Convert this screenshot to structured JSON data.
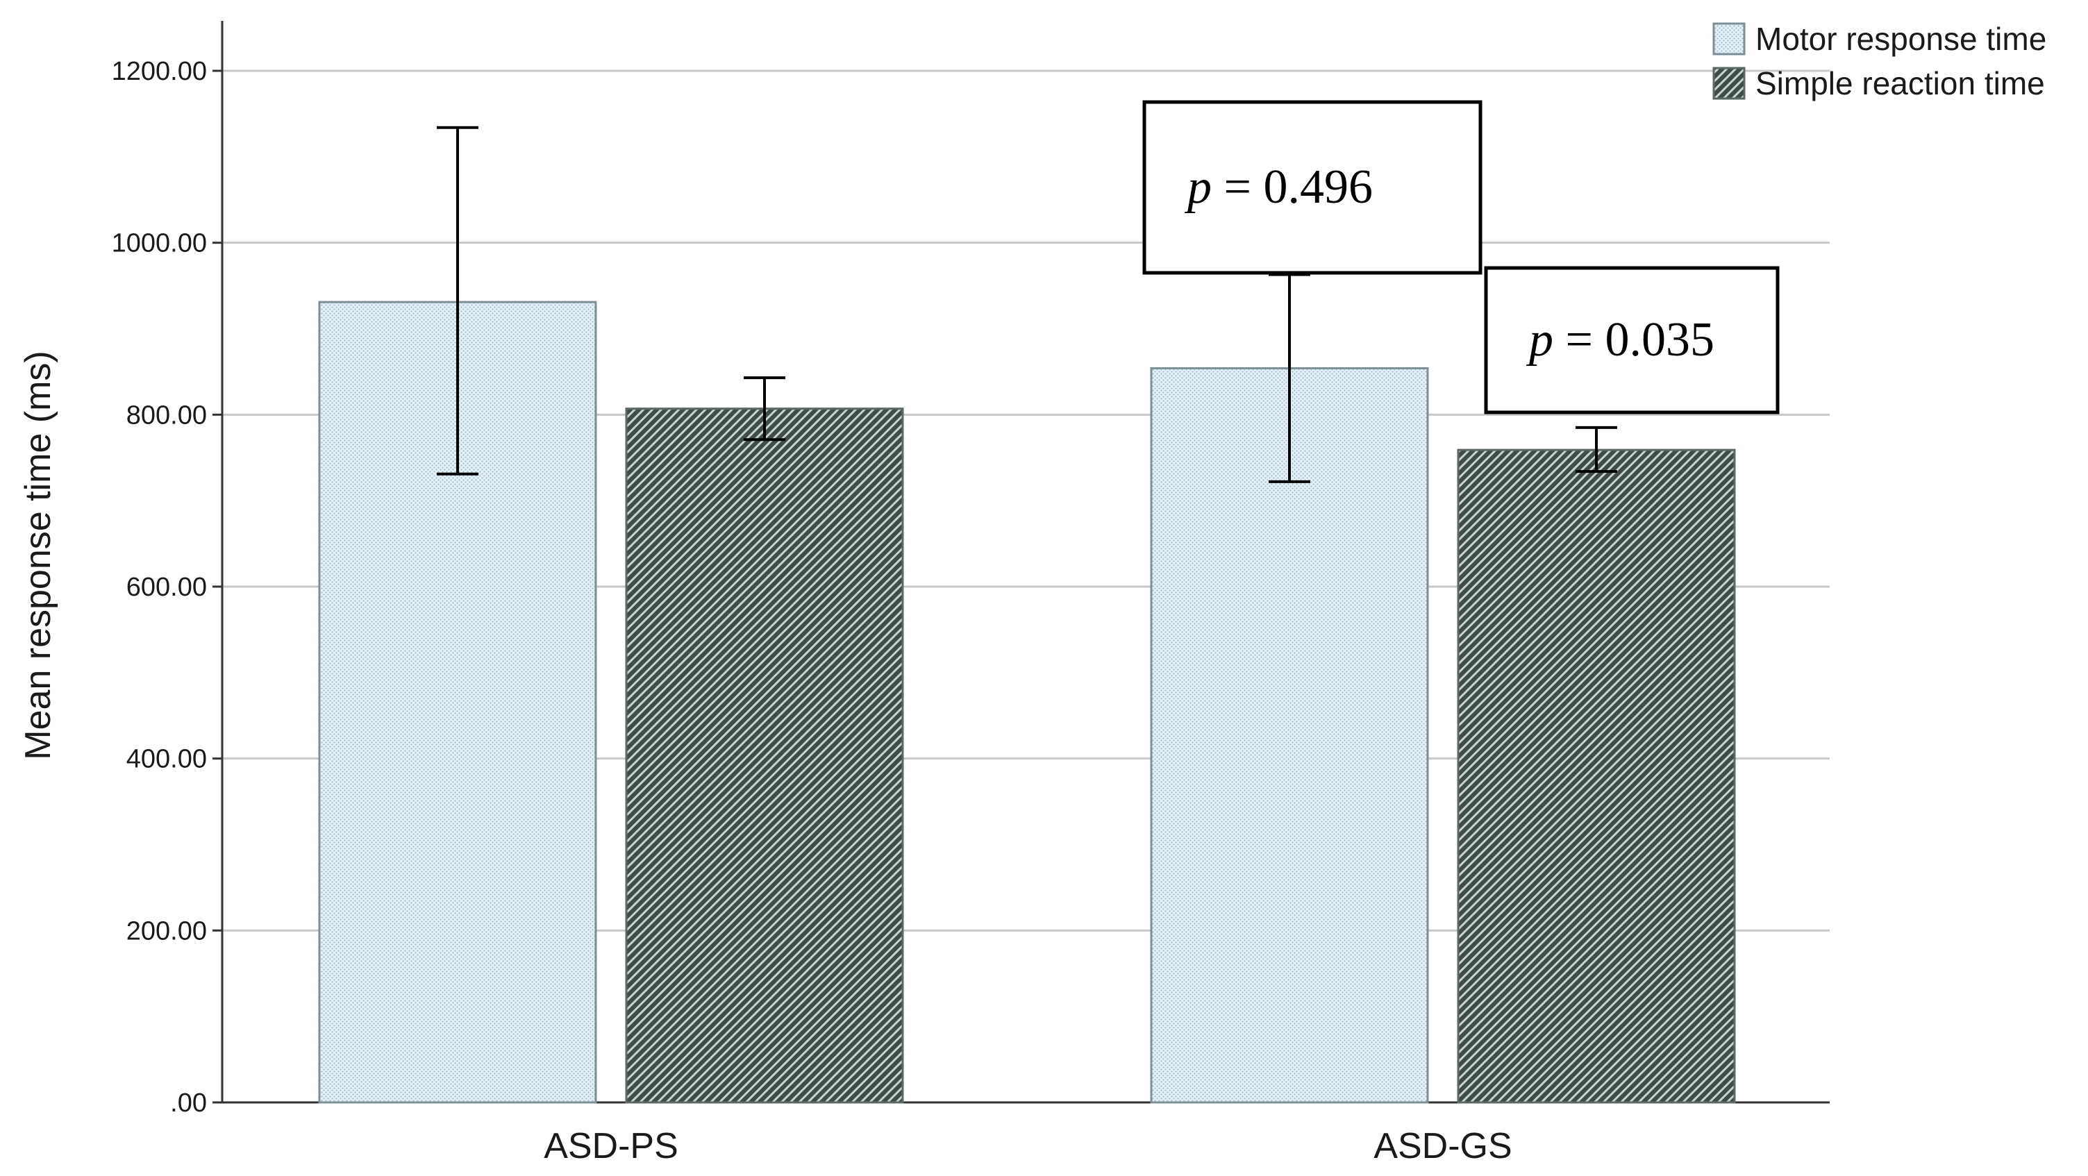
{
  "chart_data": {
    "type": "bar",
    "title": "",
    "xlabel": "",
    "ylabel": "Mean response time (ms)",
    "ylim": [
      0,
      1200
    ],
    "yticks": [
      0,
      200,
      400,
      600,
      800,
      1000,
      1200
    ],
    "ytick_labels": [
      ".00",
      "200.00",
      "400.00",
      "600.00",
      "800.00",
      "1000.00",
      "1200.00"
    ],
    "grid": true,
    "legend_position": "top-right",
    "categories": [
      "ASD-PS",
      "ASD-GS"
    ],
    "series": [
      {
        "name": "Motor response time",
        "color": "#d6e8f2",
        "pattern": "dots",
        "values": [
          931,
          854
        ],
        "error_low": [
          731,
          722
        ],
        "error_high": [
          1134,
          963
        ]
      },
      {
        "name": "Simple reaction time",
        "color": "#4a5a58",
        "pattern": "diagonal-hatch",
        "values": [
          807,
          759
        ],
        "error_low": [
          771,
          734
        ],
        "error_high": [
          843,
          785
        ]
      }
    ],
    "annotations": [
      {
        "prefix": "p",
        "text": " = 0.496",
        "category_index": 1,
        "series_index": 0
      },
      {
        "prefix": "p",
        "text": " = 0.035",
        "category_index": 1,
        "series_index": 1
      }
    ]
  }
}
